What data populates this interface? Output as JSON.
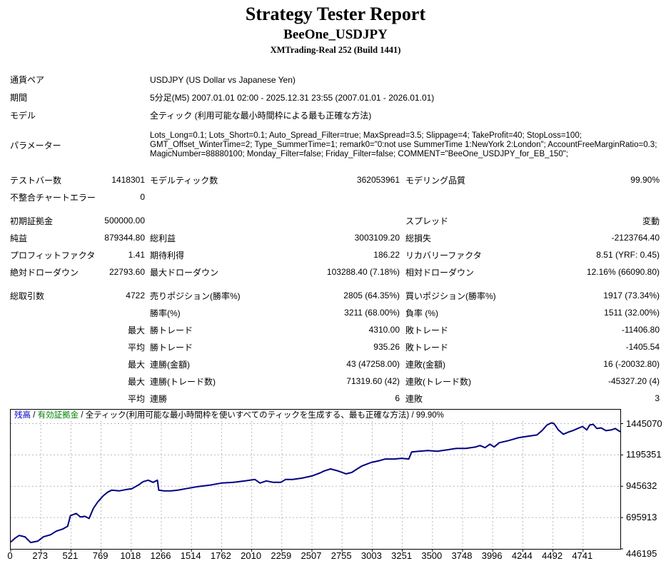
{
  "header": {
    "title": "Strategy Tester Report",
    "symbol": "BeeOne_USDJPY",
    "build": "XMTrading-Real 252 (Build 1441)"
  },
  "info": {
    "rows": [
      {
        "label": "通貨ペア",
        "value": "USDJPY (US Dollar vs Japanese Yen)"
      },
      {
        "label": "期間",
        "value": "5分足(M5) 2007.01.01 02:00 - 2025.12.31 23:55 (2007.01.01 - 2026.01.01)"
      },
      {
        "label": "モデル",
        "value": "全ティック (利用可能な最小時間枠による最も正確な方法)"
      },
      {
        "label": "パラメーター",
        "value": "Lots_Long=0.1; Lots_Short=0.1; Auto_Spread_Filter=true; MaxSpread=3.5; Slippage=4; TakeProfit=40; StopLoss=100; GMT_Offset_WinterTime=2; Type_SummerTime=1; remark0=\"0:not use SummerTime 1:NewYork 2:London\"; AccountFreeMarginRatio=0.3; MagicNumber=88880100; Monday_Filter=false; Friday_Filter=false; COMMENT=\"BeeOne_USDJPY_for_EB_150\";"
      }
    ]
  },
  "stats": {
    "groups": [
      {
        "rows": [
          [
            "テストバー数",
            "1418301",
            "モデルティック数",
            "362053961",
            "モデリング品質",
            "99.90%"
          ],
          [
            "不整合チャートエラー",
            "0",
            "",
            "",
            "",
            ""
          ]
        ]
      },
      {
        "rows": [
          [
            "初期証拠金",
            "500000.00",
            "",
            "",
            "スプレッド",
            "変動"
          ],
          [
            "純益",
            "879344.80",
            "総利益",
            "3003109.20",
            "総損失",
            "-2123764.40"
          ],
          [
            "プロフィットファクタ",
            "1.41",
            "期待利得",
            "186.22",
            "リカバリーファクタ",
            "8.51 (YRF: 0.45)"
          ],
          [
            "絶対ドローダウン",
            "22793.60",
            "最大ドローダウン",
            "103288.40 (7.18%)",
            "相対ドローダウン",
            "12.16% (66090.80)"
          ]
        ]
      },
      {
        "rows": [
          [
            "総取引数",
            "4722",
            "売りポジション(勝率%)",
            "2805 (64.35%)",
            "買いポジション(勝率%)",
            "1917 (73.34%)"
          ],
          [
            "",
            "",
            "勝率(%)",
            "3211 (68.00%)",
            "負率 (%)",
            "1511 (32.00%)"
          ],
          [
            "",
            "最大",
            "勝トレード",
            "4310.00",
            "敗トレード",
            "-11406.80"
          ],
          [
            "",
            "平均",
            "勝トレード",
            "935.26",
            "敗トレード",
            "-1405.54"
          ],
          [
            "",
            "最大",
            "連勝(金額)",
            "43 (47258.00)",
            "連敗(金額)",
            "16 (-20032.80)"
          ],
          [
            "",
            "最大",
            "連勝(トレード数)",
            "71319.60 (42)",
            "連敗(トレード数)",
            "-45327.20 (4)"
          ],
          [
            "",
            "平均",
            "連勝",
            "6",
            "連敗",
            "3"
          ]
        ]
      }
    ]
  },
  "chart_data": {
    "type": "line",
    "legend": {
      "balance_label": "残高",
      "equity_label": "有効証拠金",
      "model_label": "全ティック(利用可能な最小時間枠を使いすべてのティックを生成する、最も正確な方法)",
      "quality_label": "99.90%",
      "separator": "/"
    },
    "colors": {
      "balance_line": "#000080",
      "balance_label": "#0000c8",
      "equity_label": "#008000",
      "grid": "#b9b9b9",
      "axis": "#000000"
    },
    "xlabel": "",
    "ylabel": "",
    "x_range": [
      0,
      4722
    ],
    "x_ticks": [
      "0",
      "273",
      "521",
      "769",
      "1018",
      "1266",
      "1514",
      "1762",
      "2010",
      "2259",
      "2507",
      "2755",
      "3003",
      "3251",
      "3500",
      "3748",
      "3996",
      "4244",
      "4492",
      "4741"
    ],
    "y_ticks": [
      1445070,
      1195351,
      945632,
      695913,
      446195
    ],
    "series": [
      {
        "name": "残高",
        "points": [
          [
            0,
            500000
          ],
          [
            33,
            530800
          ],
          [
            66,
            553400
          ],
          [
            110,
            542100
          ],
          [
            154,
            497000
          ],
          [
            210,
            508300
          ],
          [
            254,
            542100
          ],
          [
            309,
            559100
          ],
          [
            353,
            587300
          ],
          [
            403,
            604200
          ],
          [
            441,
            626800
          ],
          [
            463,
            711400
          ],
          [
            507,
            728400
          ],
          [
            541,
            700100
          ],
          [
            574,
            705800
          ],
          [
            607,
            688900
          ],
          [
            640,
            767900
          ],
          [
            673,
            818700
          ],
          [
            717,
            869500
          ],
          [
            750,
            897700
          ],
          [
            783,
            914600
          ],
          [
            844,
            909000
          ],
          [
            899,
            920200
          ],
          [
            938,
            925900
          ],
          [
            987,
            954100
          ],
          [
            1026,
            982300
          ],
          [
            1065,
            993600
          ],
          [
            1103,
            976700
          ],
          [
            1136,
            993600
          ],
          [
            1147,
            914600
          ],
          [
            1186,
            909000
          ],
          [
            1241,
            909000
          ],
          [
            1296,
            914600
          ],
          [
            1357,
            925900
          ],
          [
            1451,
            942800
          ],
          [
            1539,
            954100
          ],
          [
            1633,
            971000
          ],
          [
            1727,
            976700
          ],
          [
            1815,
            988000
          ],
          [
            1892,
            999200
          ],
          [
            1931,
            971000
          ],
          [
            1980,
            988000
          ],
          [
            2035,
            976700
          ],
          [
            2091,
            976700
          ],
          [
            2129,
            999200
          ],
          [
            2184,
            999200
          ],
          [
            2256,
            1010500
          ],
          [
            2333,
            1027500
          ],
          [
            2405,
            1055700
          ],
          [
            2427,
            1067000
          ],
          [
            2477,
            1083900
          ],
          [
            2537,
            1067000
          ],
          [
            2598,
            1044400
          ],
          [
            2642,
            1055700
          ],
          [
            2719,
            1106500
          ],
          [
            2791,
            1134700
          ],
          [
            2863,
            1151600
          ],
          [
            2901,
            1162900
          ],
          [
            2973,
            1162900
          ],
          [
            3028,
            1168600
          ],
          [
            3083,
            1162900
          ],
          [
            3106,
            1219300
          ],
          [
            3161,
            1225000
          ],
          [
            3232,
            1230600
          ],
          [
            3304,
            1225000
          ],
          [
            3381,
            1236300
          ],
          [
            3453,
            1247600
          ],
          [
            3525,
            1247600
          ],
          [
            3602,
            1258800
          ],
          [
            3635,
            1270100
          ],
          [
            3674,
            1253200
          ],
          [
            3712,
            1281400
          ],
          [
            3745,
            1258800
          ],
          [
            3784,
            1292700
          ],
          [
            3856,
            1309600
          ],
          [
            3933,
            1332200
          ],
          [
            4005,
            1343500
          ],
          [
            4076,
            1354800
          ],
          [
            4115,
            1388600
          ],
          [
            4154,
            1433800
          ],
          [
            4187,
            1450700
          ],
          [
            4209,
            1445100
          ],
          [
            4242,
            1394300
          ],
          [
            4280,
            1360400
          ],
          [
            4319,
            1377400
          ],
          [
            4352,
            1388600
          ],
          [
            4391,
            1405600
          ],
          [
            4429,
            1422500
          ],
          [
            4462,
            1394300
          ],
          [
            4485,
            1433800
          ],
          [
            4512,
            1439400
          ],
          [
            4540,
            1405600
          ],
          [
            4573,
            1411200
          ],
          [
            4611,
            1388600
          ],
          [
            4650,
            1394300
          ],
          [
            4683,
            1405600
          ],
          [
            4722,
            1379345
          ]
        ]
      }
    ]
  }
}
